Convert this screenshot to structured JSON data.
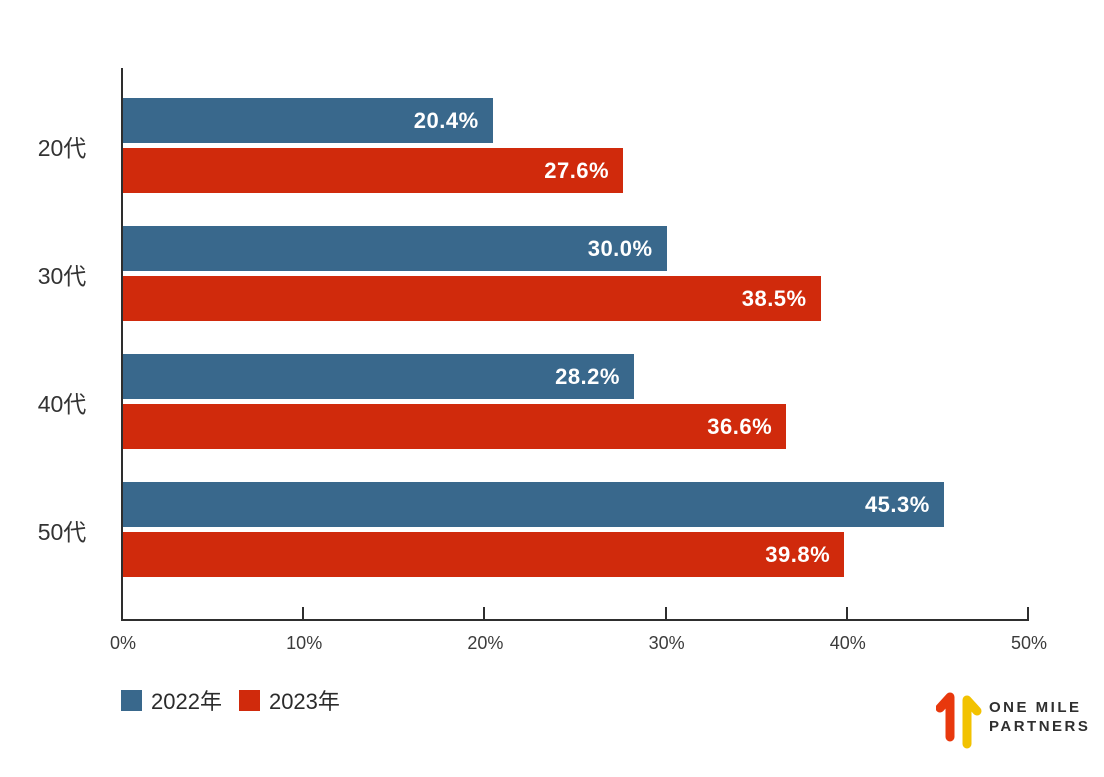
{
  "chart_data": {
    "type": "bar",
    "orientation": "horizontal",
    "title": "",
    "xlabel": "",
    "ylabel": "",
    "categories": [
      "20代",
      "30代",
      "40代",
      "50代"
    ],
    "series": [
      {
        "name": "2022年",
        "color": "#39688C",
        "values": [
          20.4,
          30.0,
          28.2,
          45.3
        ]
      },
      {
        "name": "2023年",
        "color": "#D02A0C",
        "values": [
          27.6,
          38.5,
          36.6,
          39.8
        ]
      }
    ],
    "value_label_format": "percent_one_decimal",
    "xlim": [
      0,
      50
    ],
    "x_tick_values": [
      0,
      10,
      20,
      30,
      40,
      50
    ],
    "x_tick_labels": [
      "0%",
      "10%",
      "20%",
      "30%",
      "40%",
      "50%"
    ],
    "grid": false,
    "legend_position": "bottom-left"
  },
  "legend": {
    "items": [
      {
        "label": "2022年",
        "color": "#39688C"
      },
      {
        "label": "2023年",
        "color": "#D02A0C"
      }
    ]
  },
  "logo": {
    "line1": "ONE MILE",
    "line2": "PARTNERS",
    "arrow_red": "#E8380D",
    "arrow_yellow": "#F2C200",
    "text_color": "#2f2f2f"
  },
  "colors": {
    "axis": "#2e2e2e",
    "bar_label_text": "#ffffff",
    "category_text": "#333333",
    "tick_text": "#3b3b3b",
    "background": "#ffffff"
  }
}
